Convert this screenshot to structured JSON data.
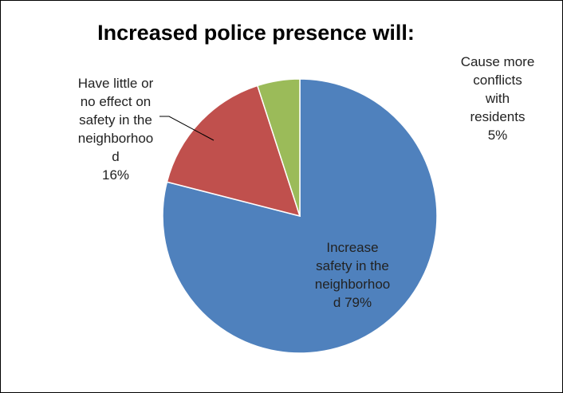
{
  "chart_data": {
    "type": "pie",
    "title": "Increased police presence will:",
    "slices": [
      {
        "label_lines": [
          "Increase",
          "safety in the",
          "neighborhoo",
          "d 79%"
        ],
        "category": "Increase safety in the neighborhood",
        "value": 79,
        "color": "#4F81BD"
      },
      {
        "label_lines": [
          "Have little or",
          "no effect on",
          "safety in the",
          "neighborhoo",
          "d",
          "16%"
        ],
        "category": "Have little or no effect on safety in the neighborhood",
        "value": 16,
        "color": "#C0504D"
      },
      {
        "label_lines": [
          "Cause more",
          "conflicts",
          "with",
          "residents",
          "5%"
        ],
        "category": "Cause more conflicts with residents",
        "value": 5,
        "color": "#9BBB59"
      }
    ],
    "legend": "none",
    "start_angle": "12 o'clock, clockwise"
  }
}
